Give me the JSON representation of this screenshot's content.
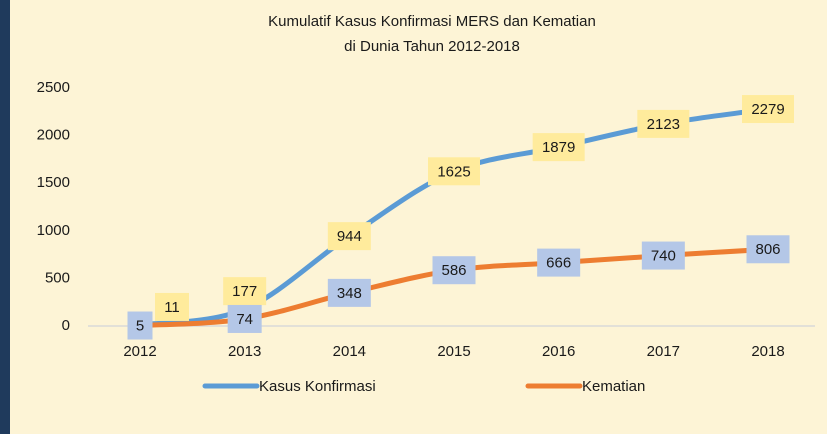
{
  "chart_data": {
    "type": "line",
    "title": [
      "Kumulatif Kasus Konfirmasi MERS dan Kematian",
      "di Dunia Tahun 2012-2018"
    ],
    "categories": [
      "2012",
      "2013",
      "2014",
      "2015",
      "2016",
      "2017",
      "2018"
    ],
    "series": [
      {
        "name": "Kasus Konfirmasi",
        "color": "#5b9bd5",
        "label_box": "#ffeb9c",
        "values": [
          11,
          177,
          944,
          1625,
          1879,
          2123,
          2279
        ]
      },
      {
        "name": "Kematian",
        "color": "#ed7d31",
        "label_box": "#b4c7e7",
        "values": [
          5,
          74,
          348,
          586,
          666,
          740,
          806
        ]
      }
    ],
    "ylim": [
      0,
      2500
    ],
    "yticks": [
      0,
      500,
      1000,
      1500,
      2000,
      2500
    ],
    "grid": false,
    "legend": "bottom"
  }
}
